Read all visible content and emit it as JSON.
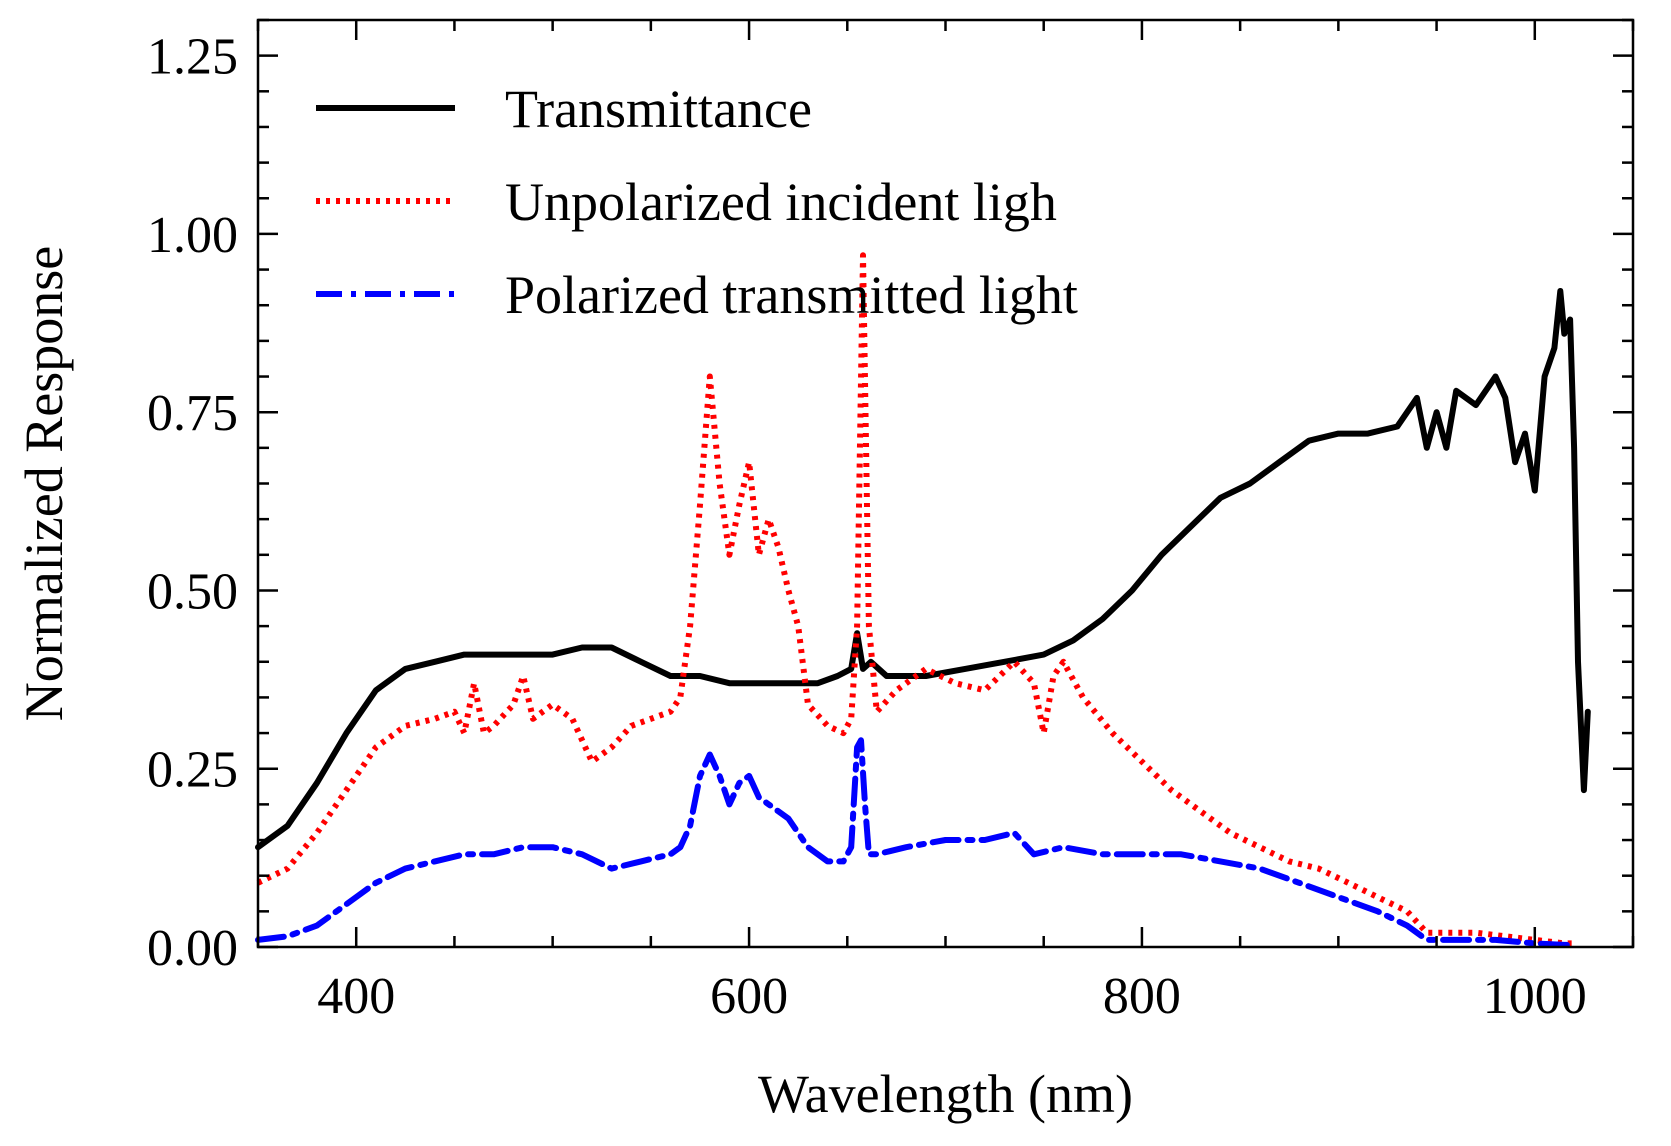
{
  "chart_data": {
    "type": "line",
    "title": "",
    "xlabel": "Wavelength (nm)",
    "ylabel": "Normalized Response",
    "xlim": [
      350,
      1050
    ],
    "ylim": [
      0,
      1.3
    ],
    "x_ticks": [
      400,
      600,
      800,
      1000
    ],
    "x_tick_labels": [
      "400",
      "600",
      "800",
      "1000"
    ],
    "y_ticks": [
      0,
      0.25,
      0.5,
      0.75,
      1.0,
      1.25
    ],
    "y_tick_labels": [
      "0.00",
      "0.25",
      "0.50",
      "0.75",
      "1.00",
      "1.25"
    ],
    "legend_position": "top-left",
    "series": [
      {
        "name": "Transmittance",
        "color": "#000000",
        "style": "solid",
        "x": [
          350,
          365,
          380,
          395,
          410,
          425,
          440,
          455,
          470,
          485,
          500,
          515,
          530,
          545,
          560,
          575,
          590,
          605,
          620,
          635,
          645,
          652,
          655,
          658,
          662,
          670,
          690,
          710,
          730,
          750,
          765,
          780,
          795,
          810,
          825,
          840,
          855,
          870,
          885,
          900,
          915,
          930,
          940,
          945,
          950,
          955,
          960,
          970,
          980,
          985,
          990,
          995,
          1000,
          1005,
          1010,
          1013,
          1015,
          1018,
          1020,
          1022,
          1025,
          1027
        ],
        "values": [
          0.14,
          0.17,
          0.23,
          0.3,
          0.36,
          0.39,
          0.4,
          0.41,
          0.41,
          0.41,
          0.41,
          0.42,
          0.42,
          0.4,
          0.38,
          0.38,
          0.37,
          0.37,
          0.37,
          0.37,
          0.38,
          0.39,
          0.44,
          0.39,
          0.4,
          0.38,
          0.38,
          0.39,
          0.4,
          0.41,
          0.43,
          0.46,
          0.5,
          0.55,
          0.59,
          0.63,
          0.65,
          0.68,
          0.71,
          0.72,
          0.72,
          0.73,
          0.77,
          0.7,
          0.75,
          0.7,
          0.78,
          0.76,
          0.8,
          0.77,
          0.68,
          0.72,
          0.64,
          0.8,
          0.84,
          0.92,
          0.86,
          0.88,
          0.7,
          0.4,
          0.22,
          0.33
        ]
      },
      {
        "name": "Unpolarized incident ligh",
        "color": "#ff0000",
        "style": "dotted",
        "x": [
          350,
          365,
          380,
          395,
          410,
          425,
          440,
          450,
          455,
          460,
          465,
          470,
          480,
          485,
          490,
          500,
          510,
          520,
          530,
          540,
          550,
          560,
          565,
          570,
          575,
          580,
          585,
          590,
          595,
          600,
          605,
          610,
          615,
          620,
          625,
          630,
          640,
          648,
          652,
          655,
          658,
          661,
          665,
          675,
          690,
          705,
          720,
          735,
          745,
          750,
          755,
          760,
          770,
          785,
          800,
          815,
          830,
          845,
          860,
          875,
          890,
          905,
          920,
          935,
          945,
          955,
          970,
          985,
          1000,
          1015,
          1020
        ],
        "values": [
          0.09,
          0.11,
          0.16,
          0.22,
          0.28,
          0.31,
          0.32,
          0.33,
          0.3,
          0.37,
          0.3,
          0.31,
          0.34,
          0.38,
          0.32,
          0.34,
          0.32,
          0.26,
          0.28,
          0.31,
          0.32,
          0.33,
          0.35,
          0.45,
          0.62,
          0.8,
          0.65,
          0.55,
          0.62,
          0.68,
          0.55,
          0.6,
          0.56,
          0.5,
          0.45,
          0.34,
          0.31,
          0.3,
          0.32,
          0.45,
          0.97,
          0.45,
          0.33,
          0.36,
          0.39,
          0.37,
          0.36,
          0.4,
          0.37,
          0.3,
          0.38,
          0.4,
          0.35,
          0.3,
          0.26,
          0.22,
          0.19,
          0.16,
          0.14,
          0.12,
          0.11,
          0.09,
          0.07,
          0.05,
          0.02,
          0.02,
          0.02,
          0.015,
          0.01,
          0.005,
          0.005
        ]
      },
      {
        "name": "Polarized transmitted light",
        "color": "#0000ff",
        "style": "dashdot",
        "x": [
          350,
          365,
          380,
          395,
          410,
          425,
          440,
          455,
          470,
          485,
          500,
          515,
          530,
          545,
          560,
          565,
          570,
          575,
          580,
          585,
          590,
          595,
          600,
          605,
          610,
          620,
          630,
          640,
          648,
          652,
          655,
          657,
          659,
          661,
          665,
          680,
          700,
          720,
          735,
          745,
          760,
          780,
          800,
          820,
          840,
          860,
          880,
          900,
          920,
          935,
          945,
          960,
          980,
          1000,
          1015,
          1020
        ],
        "values": [
          0.01,
          0.015,
          0.03,
          0.06,
          0.09,
          0.11,
          0.12,
          0.13,
          0.13,
          0.14,
          0.14,
          0.13,
          0.11,
          0.12,
          0.13,
          0.14,
          0.17,
          0.24,
          0.27,
          0.24,
          0.2,
          0.23,
          0.24,
          0.21,
          0.2,
          0.18,
          0.14,
          0.12,
          0.12,
          0.14,
          0.28,
          0.29,
          0.2,
          0.13,
          0.13,
          0.14,
          0.15,
          0.15,
          0.16,
          0.13,
          0.14,
          0.13,
          0.13,
          0.13,
          0.12,
          0.11,
          0.09,
          0.07,
          0.05,
          0.03,
          0.01,
          0.01,
          0.01,
          0.005,
          0.003,
          0.003
        ]
      }
    ]
  }
}
